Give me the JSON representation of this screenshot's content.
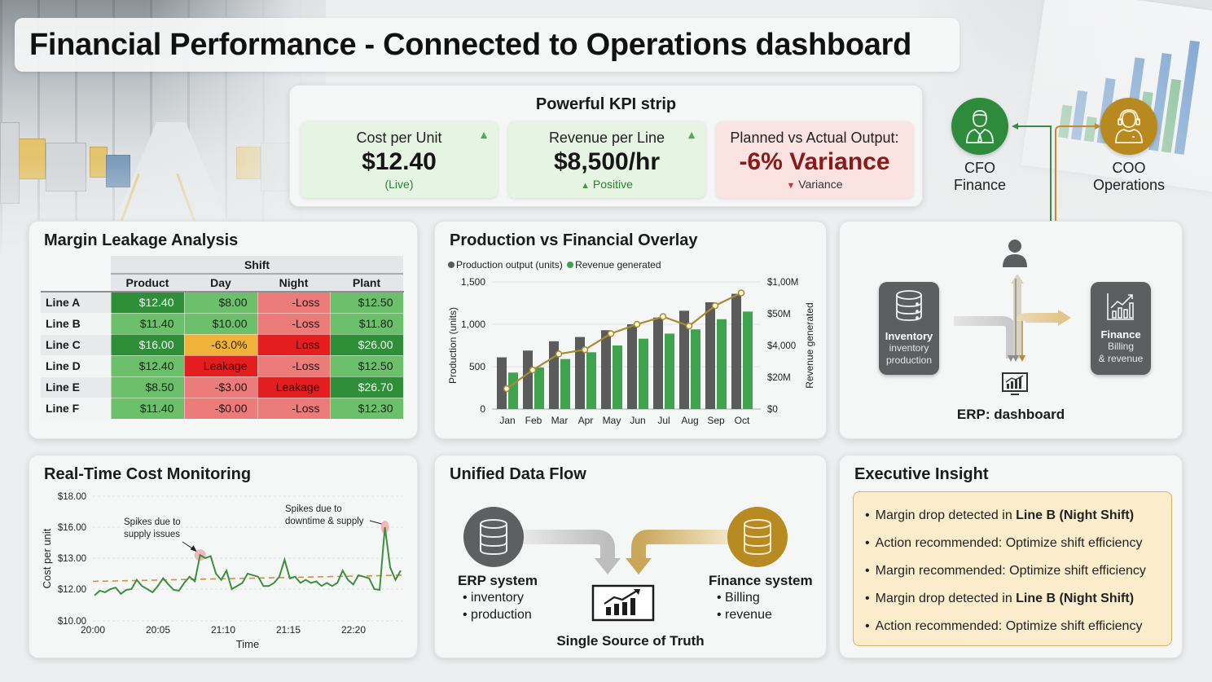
{
  "header": {
    "title": "Financial Performance - Connected to Operations dashboard"
  },
  "kpi_strip": {
    "title": "Powerful KPI strip",
    "cards": [
      {
        "label": "Cost per Unit",
        "value": "$12.40",
        "sub": "(Live)",
        "trend": "up",
        "status": "positive"
      },
      {
        "label": "Revenue per Line",
        "value": "$8,500/hr",
        "sub_arrow": "▲",
        "sub": "Positive",
        "trend": "up",
        "status": "positive"
      },
      {
        "label": "Planned vs Actual Output:",
        "value": "-6% Variance",
        "sub_arrow": "▼",
        "sub": "Variance",
        "status": "negative"
      }
    ]
  },
  "executives": [
    {
      "role": "CFO",
      "dept": "Finance",
      "color": "#2e8b3c",
      "icon": "businessman-icon"
    },
    {
      "role": "COO",
      "dept": "Operations",
      "color": "#b8891f",
      "icon": "headset-operator-icon"
    }
  ],
  "margin_leakage": {
    "title": "Margin Leakage Analysis",
    "group_header": "Shift",
    "columns": [
      "Product",
      "Day",
      "Night",
      "Plant"
    ],
    "rows": [
      {
        "line": "Line A",
        "cells": [
          {
            "v": "$12.40",
            "c": "g1"
          },
          {
            "v": "$8.00",
            "c": "g2"
          },
          {
            "v": "-Loss",
            "c": "r1"
          },
          {
            "v": "$12.50",
            "c": "g2"
          }
        ]
      },
      {
        "line": "Line B",
        "cells": [
          {
            "v": "$11.40",
            "c": "g2"
          },
          {
            "v": "$10.00",
            "c": "g2"
          },
          {
            "v": "-Loss",
            "c": "r1"
          },
          {
            "v": "$11.80",
            "c": "g2"
          }
        ]
      },
      {
        "line": "Line C",
        "cells": [
          {
            "v": "$16.00",
            "c": "g1"
          },
          {
            "v": "-63.0%",
            "c": "o1"
          },
          {
            "v": "Loss",
            "c": "r2"
          },
          {
            "v": "$26.00",
            "c": "g1"
          }
        ]
      },
      {
        "line": "Line D",
        "cells": [
          {
            "v": "$12.40",
            "c": "g2"
          },
          {
            "v": "Leakage",
            "c": "r2"
          },
          {
            "v": "-Loss",
            "c": "r1"
          },
          {
            "v": "$12.50",
            "c": "g2"
          }
        ]
      },
      {
        "line": "Line E",
        "cells": [
          {
            "v": "$8.50",
            "c": "g2"
          },
          {
            "v": "-$3.00",
            "c": "r1"
          },
          {
            "v": "Leakage",
            "c": "r2"
          },
          {
            "v": "$26.70",
            "c": "g1"
          }
        ]
      },
      {
        "line": "Line F",
        "cells": [
          {
            "v": "$11.40",
            "c": "g2"
          },
          {
            "v": "-$0.00",
            "c": "r1"
          },
          {
            "v": "-Loss",
            "c": "r1"
          },
          {
            "v": "$12.30",
            "c": "g2"
          }
        ]
      }
    ]
  },
  "production_overlay": {
    "title": "Production vs Financial Overlay",
    "legend": [
      "Production output (units)",
      "Revenue generated"
    ],
    "y_left_label": "Production (units)",
    "y_right_label": "Revenue generated",
    "y_left_ticks": [
      "1,500",
      "1,000",
      "500",
      "0"
    ],
    "y_right_ticks": [
      "$1,00M",
      "$50M",
      "$4,000",
      "$20M",
      "$0"
    ]
  },
  "erp_flow": {
    "inventory": {
      "title": "Inventory",
      "lines": [
        "inventory",
        "production"
      ]
    },
    "finance": {
      "title": "Finance",
      "lines": [
        "Billing",
        "& revenue"
      ]
    },
    "label": "ERP: dashboard"
  },
  "cost_monitoring": {
    "title": "Real-Time Cost Monitoring",
    "y_label": "Cost per unit",
    "x_label": "Time",
    "y_ticks": [
      "$18.00",
      "$16.00",
      "$13.00",
      "$12.00",
      "$10.00"
    ],
    "x_ticks": [
      "20:00",
      "20:05",
      "21:10",
      "21:15",
      "22:20"
    ],
    "annotations": [
      "Spikes due to",
      "supply issues",
      "Spikes due to",
      "downtime & supply"
    ]
  },
  "unified_flow": {
    "title": "Unified Data Flow",
    "erp": {
      "title": "ERP system",
      "items": [
        "• inventory",
        "• production"
      ]
    },
    "finance": {
      "title": "Finance system",
      "items": [
        "• Billing",
        "• revenue"
      ]
    },
    "center": "Single Source of Truth"
  },
  "executive_insight": {
    "title": "Executive Insight",
    "items": [
      {
        "text": "Margin drop detected in ",
        "bold": "Line B (Night Shift)"
      },
      {
        "text": "Action recommended: Optimize shift efficiency",
        "bold": ""
      },
      {
        "text": "Margin recommended: Optimize shift efficiency",
        "bold": ""
      },
      {
        "text": "Margin drop detected in ",
        "bold": "Line B (Night Shift)"
      },
      {
        "text": "Action recommended: Optimize shift efficiency",
        "bold": ""
      }
    ]
  },
  "colors": {
    "green_dark": "#2f8f38",
    "green_light": "#6cc06b",
    "red_light": "#ec7c7a",
    "red_strong": "#e41e1e",
    "orange": "#efb33a",
    "bar_gray": "#5b5b5c",
    "bar_green": "#3fa34d",
    "line_gold": "#a88a32",
    "gold": "#b8891f"
  },
  "chart_data": [
    {
      "type": "bar",
      "title": "Production vs Financial Overlay",
      "categories": [
        "Jan",
        "Feb",
        "Mar",
        "Apr",
        "May",
        "Jun",
        "Jul",
        "Aug",
        "Sep",
        "Oct"
      ],
      "series": [
        {
          "name": "Production output (units)",
          "axis": "left",
          "type": "bar",
          "values": [
            610,
            690,
            800,
            850,
            930,
            1000,
            1080,
            1160,
            1260,
            1360
          ]
        },
        {
          "name": "Revenue generated",
          "axis": "left",
          "type": "bar",
          "values": [
            430,
            490,
            590,
            670,
            750,
            830,
            890,
            940,
            1060,
            1150
          ]
        },
        {
          "name": "Revenue trend",
          "axis": "right",
          "type": "line",
          "values": [
            240,
            460,
            650,
            700,
            890,
            1000,
            1090,
            980,
            1220,
            1370
          ]
        }
      ],
      "xlabel": "",
      "ylabel": "Production (units)",
      "y2label": "Revenue generated",
      "ylim": [
        0,
        1500
      ],
      "y_ticks": [
        0,
        500,
        1000,
        1500
      ],
      "y2_tick_labels": [
        "$0",
        "$20M",
        "$4,000",
        "$50M",
        "$1,00M"
      ],
      "legend_position": "top-left",
      "grid": true
    },
    {
      "type": "line",
      "title": "Real-Time Cost Monitoring",
      "xlabel": "Time",
      "ylabel": "Cost per unit",
      "x_tick_labels": [
        "20:00",
        "20:05",
        "21:10",
        "21:15",
        "22:20"
      ],
      "y_tick_labels": [
        "$10.00",
        "$12.00",
        "$13.00",
        "$16.00",
        "$18.00"
      ],
      "y_positions": [
        10,
        12,
        13,
        16,
        18
      ],
      "series": [
        {
          "name": "Cost per unit",
          "values": [
            11.6,
            11.9,
            11.8,
            12.0,
            12.05,
            11.7,
            11.95,
            12.0,
            12.3,
            12.1,
            12.0,
            11.8,
            12.1,
            12.35,
            12.15,
            11.95,
            11.9,
            12.2,
            12.4,
            12.25,
            13.3,
            13.0,
            13.2,
            12.5,
            12.3,
            12.6,
            12.0,
            12.1,
            12.2,
            12.5,
            12.45,
            12.4,
            12.1,
            12.1,
            12.2,
            12.4,
            12.95,
            12.35,
            12.4,
            12.2,
            12.3,
            12.2,
            12.25,
            12.1,
            12.2,
            12.1,
            12.2,
            12.6,
            12.3,
            12.15,
            12.45,
            12.4,
            12.35,
            12.0,
            11.95,
            16.0,
            12.7,
            12.3,
            12.6
          ]
        },
        {
          "name": "Average (dashed)",
          "values_start_end": [
            12.25,
            12.45
          ]
        }
      ],
      "annotations": [
        {
          "text": "Spikes due to supply issues",
          "at": "~21:08",
          "value": 13.3
        },
        {
          "text": "Spikes due to downtime & supply",
          "at": "~22:22",
          "value": 16.0
        }
      ],
      "ylim": [
        10,
        18
      ],
      "grid": true
    }
  ]
}
